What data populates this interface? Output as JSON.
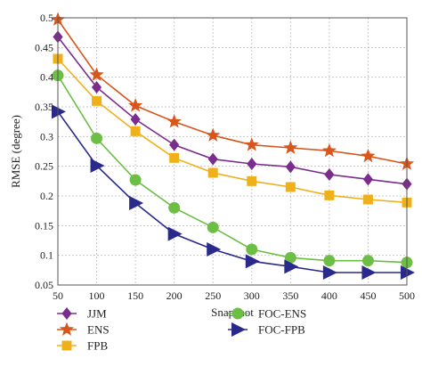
{
  "chart_data": {
    "type": "line",
    "xlabel": "Snapshot",
    "ylabel": "RMSE (degree)",
    "x": [
      50,
      100,
      150,
      200,
      250,
      300,
      350,
      400,
      450,
      500
    ],
    "xlim": [
      50,
      500
    ],
    "ylim": [
      0.05,
      0.5
    ],
    "xticks": [
      "50",
      "100",
      "150",
      "200",
      "250",
      "300",
      "350",
      "400",
      "450",
      "500"
    ],
    "yticks": [
      "0.05",
      "0.1",
      "0.15",
      "0.2",
      "0.25",
      "0.3",
      "0.35",
      "0.4",
      "0.45",
      "0.5"
    ],
    "grid": true,
    "legend_position": "bottom",
    "series": [
      {
        "name": "JJM",
        "color": "#7B2D8E",
        "marker": "diamond",
        "values": [
          0.468,
          0.383,
          0.329,
          0.286,
          0.262,
          0.254,
          0.249,
          0.236,
          0.228,
          0.22
        ]
      },
      {
        "name": "ENS",
        "color": "#D8561C",
        "marker": "star",
        "values": [
          0.497,
          0.404,
          0.352,
          0.325,
          0.302,
          0.286,
          0.281,
          0.276,
          0.267,
          0.254
        ]
      },
      {
        "name": "FPB",
        "color": "#F0B01A",
        "marker": "square",
        "values": [
          0.431,
          0.36,
          0.309,
          0.264,
          0.239,
          0.225,
          0.215,
          0.201,
          0.194,
          0.189
        ]
      },
      {
        "name": "FOC-ENS",
        "color": "#6DBE45",
        "marker": "circle",
        "values": [
          0.403,
          0.297,
          0.227,
          0.18,
          0.147,
          0.11,
          0.096,
          0.091,
          0.091,
          0.088
        ]
      },
      {
        "name": "FOC-FPB",
        "color": "#2A2A8C",
        "marker": "triangle-right",
        "values": [
          0.342,
          0.251,
          0.188,
          0.136,
          0.11,
          0.09,
          0.081,
          0.071,
          0.071,
          0.071
        ]
      }
    ]
  }
}
